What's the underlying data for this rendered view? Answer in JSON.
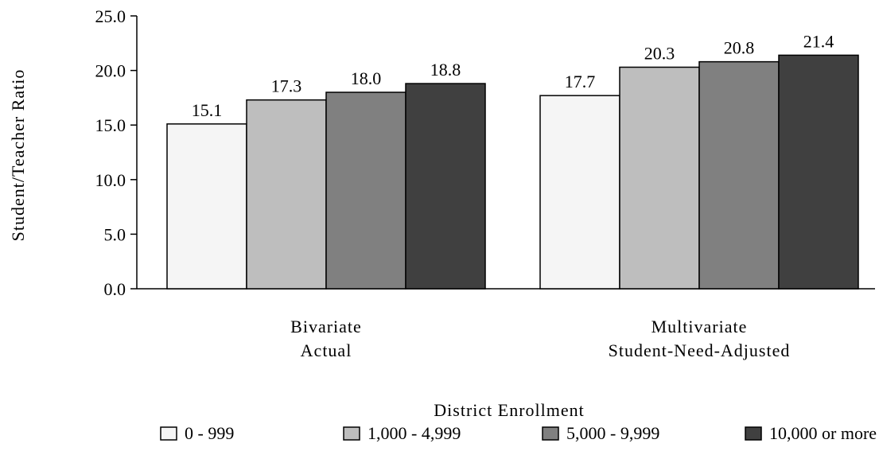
{
  "chart_data": {
    "type": "bar",
    "title": "",
    "xlabel": "",
    "ylabel": "Student/Teacher Ratio",
    "ylim": [
      0,
      25
    ],
    "yticks": [
      "0.0",
      "5.0",
      "10.0",
      "15.0",
      "20.0",
      "25.0"
    ],
    "grid": false,
    "categories": [
      [
        "Bivariate",
        "Actual"
      ],
      [
        "Multivariate",
        "Student-Need-Adjusted"
      ]
    ],
    "series": [
      {
        "name": "0 - 999",
        "values": [
          15.1,
          17.7
        ],
        "labels": [
          "15.1",
          "17.7"
        ],
        "color": "#f5f5f5"
      },
      {
        "name": "1,000 - 4,999",
        "values": [
          17.3,
          20.3
        ],
        "labels": [
          "17.3",
          "20.3"
        ],
        "color": "#bebebe"
      },
      {
        "name": "5,000 - 9,999",
        "values": [
          18.0,
          20.8
        ],
        "labels": [
          "18.0",
          "20.8"
        ],
        "color": "#808080"
      },
      {
        "name": "10,000 or more",
        "values": [
          18.8,
          21.4
        ],
        "labels": [
          "18.8",
          "21.4"
        ],
        "color": "#404040"
      }
    ],
    "legend": {
      "title": "District Enrollment",
      "placement": "bottom"
    }
  }
}
